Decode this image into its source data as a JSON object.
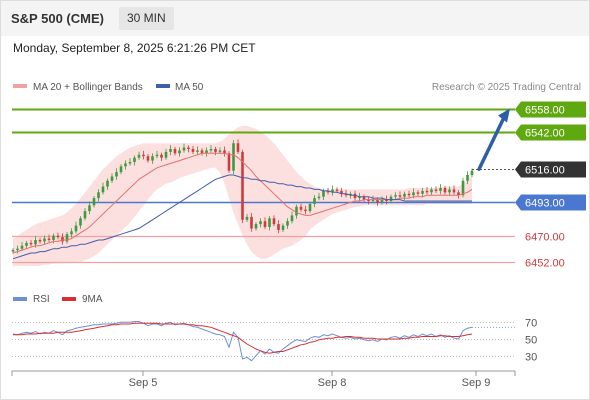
{
  "header": {
    "title": "S&P 500 (CME)",
    "timeframe": "30 MIN",
    "datetime": "Monday, September 8, 2025 6:21:26 PM CET"
  },
  "legend": {
    "bollinger": "MA 20 + Bollinger Bands",
    "ma50": "MA 50",
    "credit": "Research © 2025 Trading Central"
  },
  "colors": {
    "up": "#3d9a3d",
    "down": "#d23a3a",
    "ma20": "#e07070",
    "ma50": "#3f5fa8",
    "band": "#fbd6d6",
    "resistance": "#5fa80f",
    "support_current": "#4a78d0",
    "support": "#f3a0a0",
    "price": "#333333",
    "arrow": "#2d5fa8",
    "rsi": "#6c8fd6",
    "rsi_ma": "#d83030"
  },
  "chart_data": [
    {
      "type": "candlestick",
      "ylim": [
        6440,
        6566
      ],
      "x_ticks": [
        "Sep 5",
        "Sep 8",
        "Sep 9"
      ],
      "price_levels": [
        {
          "value": 6558.0,
          "label": "6558.00",
          "kind": "resistance"
        },
        {
          "value": 6542.0,
          "label": "6542.00",
          "kind": "resistance"
        },
        {
          "value": 6516.0,
          "label": "6516.00",
          "kind": "current"
        },
        {
          "value": 6493.0,
          "label": "6493.00",
          "kind": "support-current"
        },
        {
          "value": 6470.0,
          "label": "6470.00",
          "kind": "support"
        },
        {
          "value": 6452.0,
          "label": "6452.00",
          "kind": "support"
        }
      ],
      "forecast_arrow": {
        "from": 6516,
        "to": 6558
      },
      "close": [
        6460,
        6461,
        6463,
        6465,
        6464,
        6467,
        6466,
        6468,
        6467,
        6470,
        6469,
        6466,
        6471,
        6473,
        6477,
        6482,
        6487,
        6491,
        6496,
        6500,
        6504,
        6508,
        6511,
        6514,
        6518,
        6520,
        6521,
        6524,
        6526,
        6525,
        6522,
        6525,
        6526,
        6524,
        6528,
        6530,
        6527,
        6529,
        6531,
        6530,
        6528,
        6529,
        6527,
        6529,
        6530,
        6528,
        6529,
        6527,
        6515,
        6534,
        6528,
        6481,
        6483,
        6475,
        6478,
        6480,
        6476,
        6482,
        6478,
        6474,
        6477,
        6480,
        6484,
        6490,
        6488,
        6487,
        6492,
        6496,
        6497,
        6501,
        6500,
        6502,
        6501,
        6499,
        6498,
        6499,
        6496,
        6497,
        6495,
        6494,
        6495,
        6493,
        6495,
        6494,
        6497,
        6498,
        6497,
        6499,
        6498,
        6500,
        6499,
        6501,
        6500,
        6502,
        6501,
        6503,
        6500,
        6502,
        6500,
        6498,
        6508,
        6512,
        6515
      ],
      "ma20": [
        6458,
        6459,
        6460,
        6461,
        6462,
        6463,
        6463,
        6464,
        6465,
        6466,
        6466,
        6467,
        6467,
        6468,
        6470,
        6472,
        6474,
        6476,
        6479,
        6482,
        6485,
        6488,
        6491,
        6494,
        6497,
        6500,
        6503,
        6506,
        6509,
        6511,
        6513,
        6515,
        6517,
        6518,
        6519,
        6520,
        6521,
        6522,
        6523,
        6524,
        6525,
        6526,
        6527,
        6527,
        6527,
        6527,
        6527,
        6527,
        6526,
        6526,
        6524,
        6521,
        6518,
        6515,
        6511,
        6508,
        6505,
        6502,
        6499,
        6496,
        6493,
        6490,
        6488,
        6486,
        6485,
        6484,
        6484,
        6485,
        6486,
        6487,
        6488,
        6489,
        6490,
        6491,
        6492,
        6493,
        6494,
        6494,
        6495,
        6495,
        6495,
        6495,
        6495,
        6495,
        6495,
        6495,
        6496,
        6496,
        6496,
        6497,
        6497,
        6497,
        6498,
        6498,
        6498,
        6498,
        6498,
        6498,
        6498,
        6498,
        6499,
        6500,
        6502
      ],
      "upper_band": [
        6468,
        6470,
        6472,
        6474,
        6476,
        6478,
        6479,
        6480,
        6481,
        6482,
        6483,
        6484,
        6486,
        6489,
        6492,
        6496,
        6500,
        6504,
        6508,
        6512,
        6516,
        6519,
        6522,
        6525,
        6527,
        6529,
        6531,
        6532,
        6533,
        6534,
        6534,
        6534,
        6534,
        6534,
        6534,
        6534,
        6534,
        6534,
        6534,
        6534,
        6534,
        6534,
        6534,
        6534,
        6534,
        6534,
        6535,
        6537,
        6540,
        6543,
        6545,
        6546,
        6546,
        6545,
        6544,
        6542,
        6540,
        6537,
        6534,
        6530,
        6526,
        6522,
        6518,
        6514,
        6511,
        6508,
        6506,
        6504,
        6503,
        6502,
        6502,
        6502,
        6502,
        6502,
        6502,
        6502,
        6502,
        6502,
        6502,
        6502,
        6502,
        6502,
        6502,
        6502,
        6502,
        6502,
        6502,
        6502,
        6503,
        6503,
        6503,
        6503,
        6503,
        6503,
        6503,
        6504,
        6504,
        6504,
        6504,
        6504,
        6506,
        6509,
        6512
      ],
      "lower_band": [
        6449,
        6449,
        6449,
        6449,
        6449,
        6449,
        6449,
        6450,
        6450,
        6451,
        6451,
        6451,
        6451,
        6451,
        6452,
        6452,
        6453,
        6454,
        6456,
        6458,
        6461,
        6464,
        6467,
        6470,
        6473,
        6476,
        6479,
        6483,
        6487,
        6491,
        6495,
        6499,
        6502,
        6504,
        6506,
        6507,
        6508,
        6510,
        6511,
        6512,
        6513,
        6514,
        6515,
        6516,
        6517,
        6517,
        6514,
        6506,
        6496,
        6486,
        6478,
        6470,
        6464,
        6459,
        6456,
        6454,
        6454,
        6455,
        6457,
        6459,
        6461,
        6462,
        6463,
        6465,
        6467,
        6470,
        6474,
        6477,
        6479,
        6481,
        6483,
        6485,
        6486,
        6487,
        6488,
        6489,
        6490,
        6490,
        6491,
        6491,
        6491,
        6491,
        6491,
        6491,
        6491,
        6491,
        6491,
        6491,
        6491,
        6491,
        6491,
        6491,
        6492,
        6492,
        6492,
        6492,
        6492,
        6492,
        6492,
        6492,
        6492,
        6492,
        6492
      ],
      "ma50": [
        6454,
        6455,
        6456,
        6457,
        6458,
        6458,
        6459,
        6459,
        6460,
        6461,
        6461,
        6462,
        6462,
        6463,
        6463,
        6464,
        6464,
        6465,
        6466,
        6467,
        6467,
        6468,
        6469,
        6470,
        6471,
        6472,
        6473,
        6474,
        6475,
        6477,
        6479,
        6481,
        6483,
        6485,
        6487,
        6489,
        6491,
        6493,
        6495,
        6497,
        6499,
        6501,
        6503,
        6505,
        6507,
        6509,
        6510,
        6511,
        6512,
        6512,
        6511,
        6510,
        6510,
        6509,
        6509,
        6508,
        6508,
        6507,
        6507,
        6506,
        6506,
        6505,
        6505,
        6504,
        6504,
        6503,
        6503,
        6502,
        6502,
        6501,
        6501,
        6500,
        6500,
        6499,
        6499,
        6498,
        6498,
        6497,
        6497,
        6497,
        6496,
        6496,
        6496,
        6495,
        6495,
        6495,
        6495,
        6494,
        6494,
        6494,
        6494,
        6494,
        6494,
        6494,
        6494,
        6494,
        6494,
        6494,
        6494,
        6494,
        6494,
        6494,
        6494
      ]
    },
    {
      "type": "line",
      "title": "RSI",
      "series": [
        {
          "name": "RSI"
        },
        {
          "name": "9MA"
        }
      ],
      "ylim": [
        20,
        80
      ],
      "y_ticks": [
        "70",
        "50",
        "30"
      ],
      "rsi": [
        56,
        55,
        57,
        58,
        57,
        59,
        56,
        58,
        57,
        60,
        58,
        55,
        60,
        61,
        63,
        64,
        65,
        66,
        67,
        67,
        68,
        68,
        68,
        69,
        70,
        70,
        70,
        71,
        71,
        69,
        66,
        68,
        68,
        66,
        69,
        70,
        67,
        68,
        69,
        67,
        65,
        64,
        62,
        60,
        58,
        56,
        55,
        53,
        40,
        58,
        52,
        26,
        28,
        24,
        30,
        36,
        32,
        38,
        34,
        33,
        38,
        42,
        46,
        49,
        48,
        47,
        51,
        53,
        52,
        55,
        54,
        56,
        54,
        52,
        51,
        52,
        50,
        51,
        49,
        48,
        49,
        47,
        50,
        49,
        52,
        53,
        51,
        54,
        52,
        55,
        53,
        56,
        54,
        56,
        53,
        55,
        52,
        54,
        51,
        50,
        60,
        63,
        64
      ],
      "rsi_ma": [
        55,
        55,
        55,
        56,
        56,
        56,
        57,
        57,
        57,
        57,
        58,
        58,
        58,
        58,
        59,
        60,
        61,
        62,
        63,
        64,
        65,
        66,
        67,
        67,
        68,
        68,
        68,
        69,
        69,
        69,
        69,
        69,
        69,
        68,
        68,
        68,
        68,
        68,
        68,
        67,
        67,
        66,
        66,
        65,
        64,
        62,
        60,
        58,
        56,
        54,
        52,
        48,
        44,
        41,
        38,
        36,
        34,
        33,
        34,
        35,
        35,
        37,
        39,
        41,
        43,
        44,
        46,
        47,
        49,
        50,
        51,
        51,
        52,
        52,
        53,
        53,
        52,
        52,
        51,
        51,
        51,
        50,
        50,
        50,
        50,
        50,
        50,
        51,
        51,
        52,
        52,
        53,
        53,
        53,
        53,
        54,
        54,
        53,
        53,
        53,
        54,
        55,
        56
      ]
    }
  ]
}
